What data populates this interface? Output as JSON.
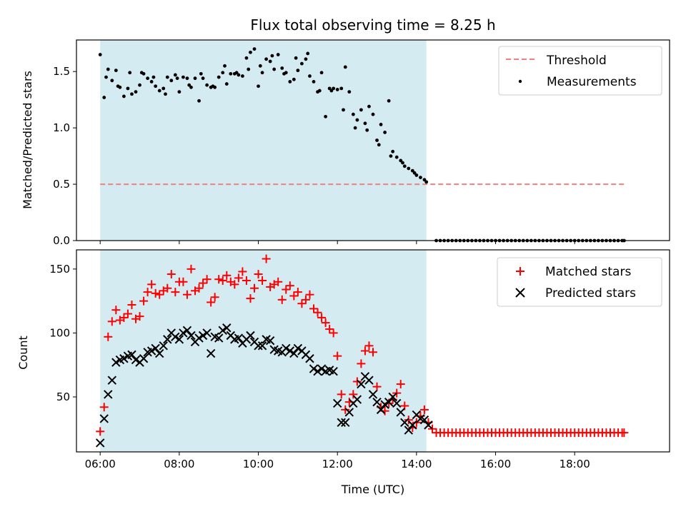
{
  "chart_data": [
    {
      "type": "scatter",
      "title": "Flux total observing time = 8.25 h",
      "xlabel": "",
      "ylabel": "Matched/Predicted stars",
      "x_unit": "hours (UTC)",
      "xlim": [
        5.4,
        20.4
      ],
      "ylim": [
        0,
        1.78
      ],
      "yticks": [
        0.0,
        0.5,
        1.0,
        1.5
      ],
      "ytick_labels": [
        "0.0",
        "0.5",
        "1.0",
        "1.5"
      ],
      "shaded_region": {
        "x_start": 6.0,
        "x_end": 14.25,
        "color": "#add8e6"
      },
      "legend_position": "top-right",
      "series": [
        {
          "name": "Threshold",
          "kind": "dashed-line",
          "color": "#f08080",
          "x": [
            6.0,
            19.25
          ],
          "y": [
            0.5,
            0.5
          ]
        },
        {
          "name": "Measurements",
          "kind": "points",
          "color": "#000000",
          "x": [
            6.0,
            6.1,
            6.15,
            6.2,
            6.3,
            6.4,
            6.45,
            6.5,
            6.6,
            6.7,
            6.75,
            6.8,
            6.9,
            7.0,
            7.05,
            7.1,
            7.2,
            7.3,
            7.35,
            7.4,
            7.5,
            7.6,
            7.65,
            7.7,
            7.8,
            7.9,
            7.95,
            8.0,
            8.1,
            8.2,
            8.25,
            8.3,
            8.4,
            8.5,
            8.55,
            8.6,
            8.7,
            8.8,
            8.85,
            8.9,
            9.0,
            9.1,
            9.15,
            9.2,
            9.3,
            9.4,
            9.45,
            9.5,
            9.6,
            9.7,
            9.75,
            9.8,
            9.9,
            10.0,
            10.05,
            10.1,
            10.2,
            10.3,
            10.35,
            10.4,
            10.5,
            10.6,
            10.65,
            10.7,
            10.8,
            10.9,
            10.95,
            11.0,
            11.1,
            11.2,
            11.25,
            11.3,
            11.4,
            11.5,
            11.55,
            11.6,
            11.7,
            11.8,
            11.85,
            11.9,
            12.0,
            12.1,
            12.15,
            12.2,
            12.3,
            12.4,
            12.45,
            12.5,
            12.6,
            12.7,
            12.75,
            12.8,
            12.9,
            13.0,
            13.05,
            13.1,
            13.2,
            13.3,
            13.35,
            13.4,
            13.5,
            13.6,
            13.65,
            13.7,
            13.8,
            13.9,
            13.95,
            14.0,
            14.1,
            14.2,
            14.25
          ],
          "y": [
            1.65,
            1.27,
            1.45,
            1.52,
            1.42,
            1.51,
            1.37,
            1.36,
            1.28,
            1.35,
            1.49,
            1.3,
            1.32,
            1.38,
            1.49,
            1.48,
            1.44,
            1.41,
            1.45,
            1.37,
            1.33,
            1.35,
            1.3,
            1.45,
            1.42,
            1.47,
            1.44,
            1.32,
            1.45,
            1.44,
            1.38,
            1.36,
            1.44,
            1.24,
            1.48,
            1.44,
            1.38,
            1.36,
            1.37,
            1.36,
            1.45,
            1.49,
            1.55,
            1.39,
            1.48,
            1.48,
            1.49,
            1.47,
            1.46,
            1.62,
            1.52,
            1.67,
            1.7,
            1.37,
            1.55,
            1.49,
            1.61,
            1.59,
            1.64,
            1.52,
            1.65,
            1.53,
            1.48,
            1.49,
            1.41,
            1.43,
            1.62,
            1.51,
            1.57,
            1.61,
            1.66,
            1.46,
            1.41,
            1.32,
            1.33,
            1.49,
            1.1,
            1.35,
            1.33,
            1.35,
            1.34,
            1.35,
            1.16,
            1.54,
            1.32,
            1.12,
            1.0,
            1.07,
            1.16,
            1.04,
            0.98,
            1.19,
            1.12,
            0.89,
            0.85,
            1.03,
            0.96,
            1.24,
            0.75,
            0.79,
            0.74,
            0.71,
            0.69,
            0.66,
            0.64,
            0.62,
            0.6,
            0.58,
            0.56,
            0.54,
            0.52
          ]
        },
        {
          "name": "",
          "kind": "points",
          "color": "#000000",
          "x": [
            14.5,
            14.6,
            14.7,
            14.8,
            14.9,
            15.0,
            15.1,
            15.2,
            15.3,
            15.4,
            15.5,
            15.6,
            15.7,
            15.8,
            15.9,
            16.0,
            16.1,
            16.2,
            16.3,
            16.4,
            16.5,
            16.6,
            16.7,
            16.8,
            16.9,
            17.0,
            17.1,
            17.2,
            17.3,
            17.4,
            17.5,
            17.6,
            17.7,
            17.8,
            17.9,
            18.0,
            18.1,
            18.2,
            18.3,
            18.4,
            18.5,
            18.6,
            18.7,
            18.8,
            18.9,
            19.0,
            19.1,
            19.2,
            19.25
          ],
          "y": [
            0,
            0,
            0,
            0,
            0,
            0,
            0,
            0,
            0,
            0,
            0,
            0,
            0,
            0,
            0,
            0,
            0,
            0,
            0,
            0,
            0,
            0,
            0,
            0,
            0,
            0,
            0,
            0,
            0,
            0,
            0,
            0,
            0,
            0,
            0,
            0,
            0,
            0,
            0,
            0,
            0,
            0,
            0,
            0,
            0,
            0,
            0,
            0,
            0
          ]
        }
      ]
    },
    {
      "type": "scatter",
      "title": "",
      "xlabel": "Time (UTC)",
      "ylabel": "Count",
      "x_unit": "hours (UTC)",
      "xlim": [
        5.4,
        20.4
      ],
      "ylim": [
        7,
        165
      ],
      "xticks": [
        6,
        8,
        10,
        12,
        14,
        16,
        18
      ],
      "xtick_labels": [
        "06:00",
        "08:00",
        "10:00",
        "12:00",
        "14:00",
        "16:00",
        "18:00"
      ],
      "yticks": [
        50,
        100,
        150
      ],
      "ytick_labels": [
        "50",
        "100",
        "150"
      ],
      "shaded_region": {
        "x_start": 6.0,
        "x_end": 14.25,
        "color": "#add8e6"
      },
      "legend_position": "top-right",
      "series": [
        {
          "name": "Matched stars",
          "kind": "plus",
          "color": "#ff0000",
          "x": [
            6.0,
            6.1,
            6.2,
            6.3,
            6.4,
            6.5,
            6.6,
            6.7,
            6.8,
            6.9,
            7.0,
            7.1,
            7.2,
            7.3,
            7.4,
            7.5,
            7.6,
            7.7,
            7.8,
            7.9,
            8.0,
            8.1,
            8.2,
            8.3,
            8.4,
            8.5,
            8.6,
            8.7,
            8.8,
            8.9,
            9.0,
            9.1,
            9.2,
            9.3,
            9.4,
            9.5,
            9.6,
            9.7,
            9.8,
            9.9,
            10.0,
            10.1,
            10.2,
            10.3,
            10.4,
            10.5,
            10.6,
            10.7,
            10.8,
            10.9,
            11.0,
            11.1,
            11.2,
            11.3,
            11.4,
            11.5,
            11.6,
            11.7,
            11.8,
            11.9,
            12.0,
            12.1,
            12.2,
            12.3,
            12.4,
            12.5,
            12.6,
            12.7,
            12.8,
            12.9,
            13.0,
            13.1,
            13.2,
            13.3,
            13.4,
            13.5,
            13.6,
            13.7,
            13.8,
            13.9,
            14.0,
            14.1,
            14.2,
            14.3,
            14.4,
            14.5,
            14.6,
            14.7,
            14.8,
            14.9,
            15.0,
            15.1,
            15.2,
            15.3,
            15.4,
            15.5,
            15.6,
            15.7,
            15.8,
            15.9,
            16.0,
            16.1,
            16.2,
            16.3,
            16.4,
            16.5,
            16.6,
            16.7,
            16.8,
            16.9,
            17.0,
            17.1,
            17.2,
            17.3,
            17.4,
            17.5,
            17.6,
            17.7,
            17.8,
            17.9,
            18.0,
            18.1,
            18.2,
            18.3,
            18.4,
            18.5,
            18.6,
            18.7,
            18.8,
            18.9,
            19.0,
            19.1,
            19.2,
            19.25
          ],
          "y": [
            23,
            42,
            97,
            109,
            118,
            110,
            112,
            115,
            122,
            111,
            113,
            125,
            132,
            138,
            131,
            130,
            133,
            135,
            146,
            132,
            140,
            140,
            130,
            150,
            133,
            135,
            139,
            142,
            124,
            128,
            142,
            141,
            145,
            140,
            138,
            143,
            148,
            141,
            127,
            135,
            146,
            141,
            158,
            136,
            138,
            140,
            126,
            134,
            137,
            129,
            132,
            123,
            126,
            130,
            119,
            116,
            112,
            108,
            103,
            100,
            82,
            52,
            40,
            46,
            52,
            62,
            76,
            86,
            90,
            85,
            58,
            42,
            39,
            45,
            48,
            53,
            60,
            43,
            32,
            26,
            30,
            35,
            40,
            30,
            25,
            22,
            22,
            22,
            22,
            22,
            22,
            22,
            22,
            22,
            22,
            22,
            22,
            22,
            22,
            22,
            22,
            22,
            22,
            22,
            22,
            22,
            22,
            22,
            22,
            22,
            22,
            22,
            22,
            22,
            22,
            22,
            22,
            22,
            22,
            22,
            22,
            22,
            22,
            22,
            22,
            22,
            22,
            22,
            22,
            22,
            22,
            22,
            22,
            22
          ]
        },
        {
          "name": "Predicted stars",
          "kind": "cross",
          "color": "#000000",
          "x": [
            6.0,
            6.1,
            6.2,
            6.3,
            6.4,
            6.5,
            6.6,
            6.7,
            6.8,
            6.9,
            7.0,
            7.1,
            7.2,
            7.3,
            7.4,
            7.5,
            7.6,
            7.7,
            7.8,
            7.9,
            8.0,
            8.1,
            8.2,
            8.3,
            8.4,
            8.5,
            8.6,
            8.7,
            8.8,
            8.9,
            9.0,
            9.1,
            9.2,
            9.3,
            9.4,
            9.5,
            9.6,
            9.7,
            9.8,
            9.9,
            10.0,
            10.1,
            10.2,
            10.3,
            10.4,
            10.5,
            10.6,
            10.7,
            10.8,
            10.9,
            11.0,
            11.1,
            11.2,
            11.3,
            11.4,
            11.5,
            11.6,
            11.7,
            11.8,
            11.9,
            12.0,
            12.1,
            12.2,
            12.3,
            12.4,
            12.5,
            12.6,
            12.7,
            12.8,
            12.9,
            13.0,
            13.1,
            13.2,
            13.3,
            13.4,
            13.5,
            13.6,
            13.7,
            13.8,
            13.9,
            14.0,
            14.1,
            14.2,
            14.3
          ],
          "y": [
            14,
            33,
            52,
            63,
            77,
            79,
            80,
            82,
            83,
            79,
            77,
            80,
            85,
            86,
            88,
            84,
            90,
            95,
            100,
            97,
            95,
            100,
            102,
            98,
            93,
            96,
            98,
            100,
            84,
            97,
            96,
            102,
            104,
            98,
            95,
            96,
            92,
            95,
            98,
            93,
            90,
            90,
            95,
            94,
            87,
            86,
            85,
            88,
            86,
            84,
            88,
            86,
            83,
            80,
            72,
            70,
            72,
            70,
            71,
            70,
            45,
            30,
            30,
            38,
            45,
            48,
            60,
            66,
            63,
            52,
            46,
            40,
            44,
            46,
            50,
            45,
            38,
            30,
            24,
            28,
            36,
            33,
            32,
            28
          ]
        }
      ]
    }
  ]
}
